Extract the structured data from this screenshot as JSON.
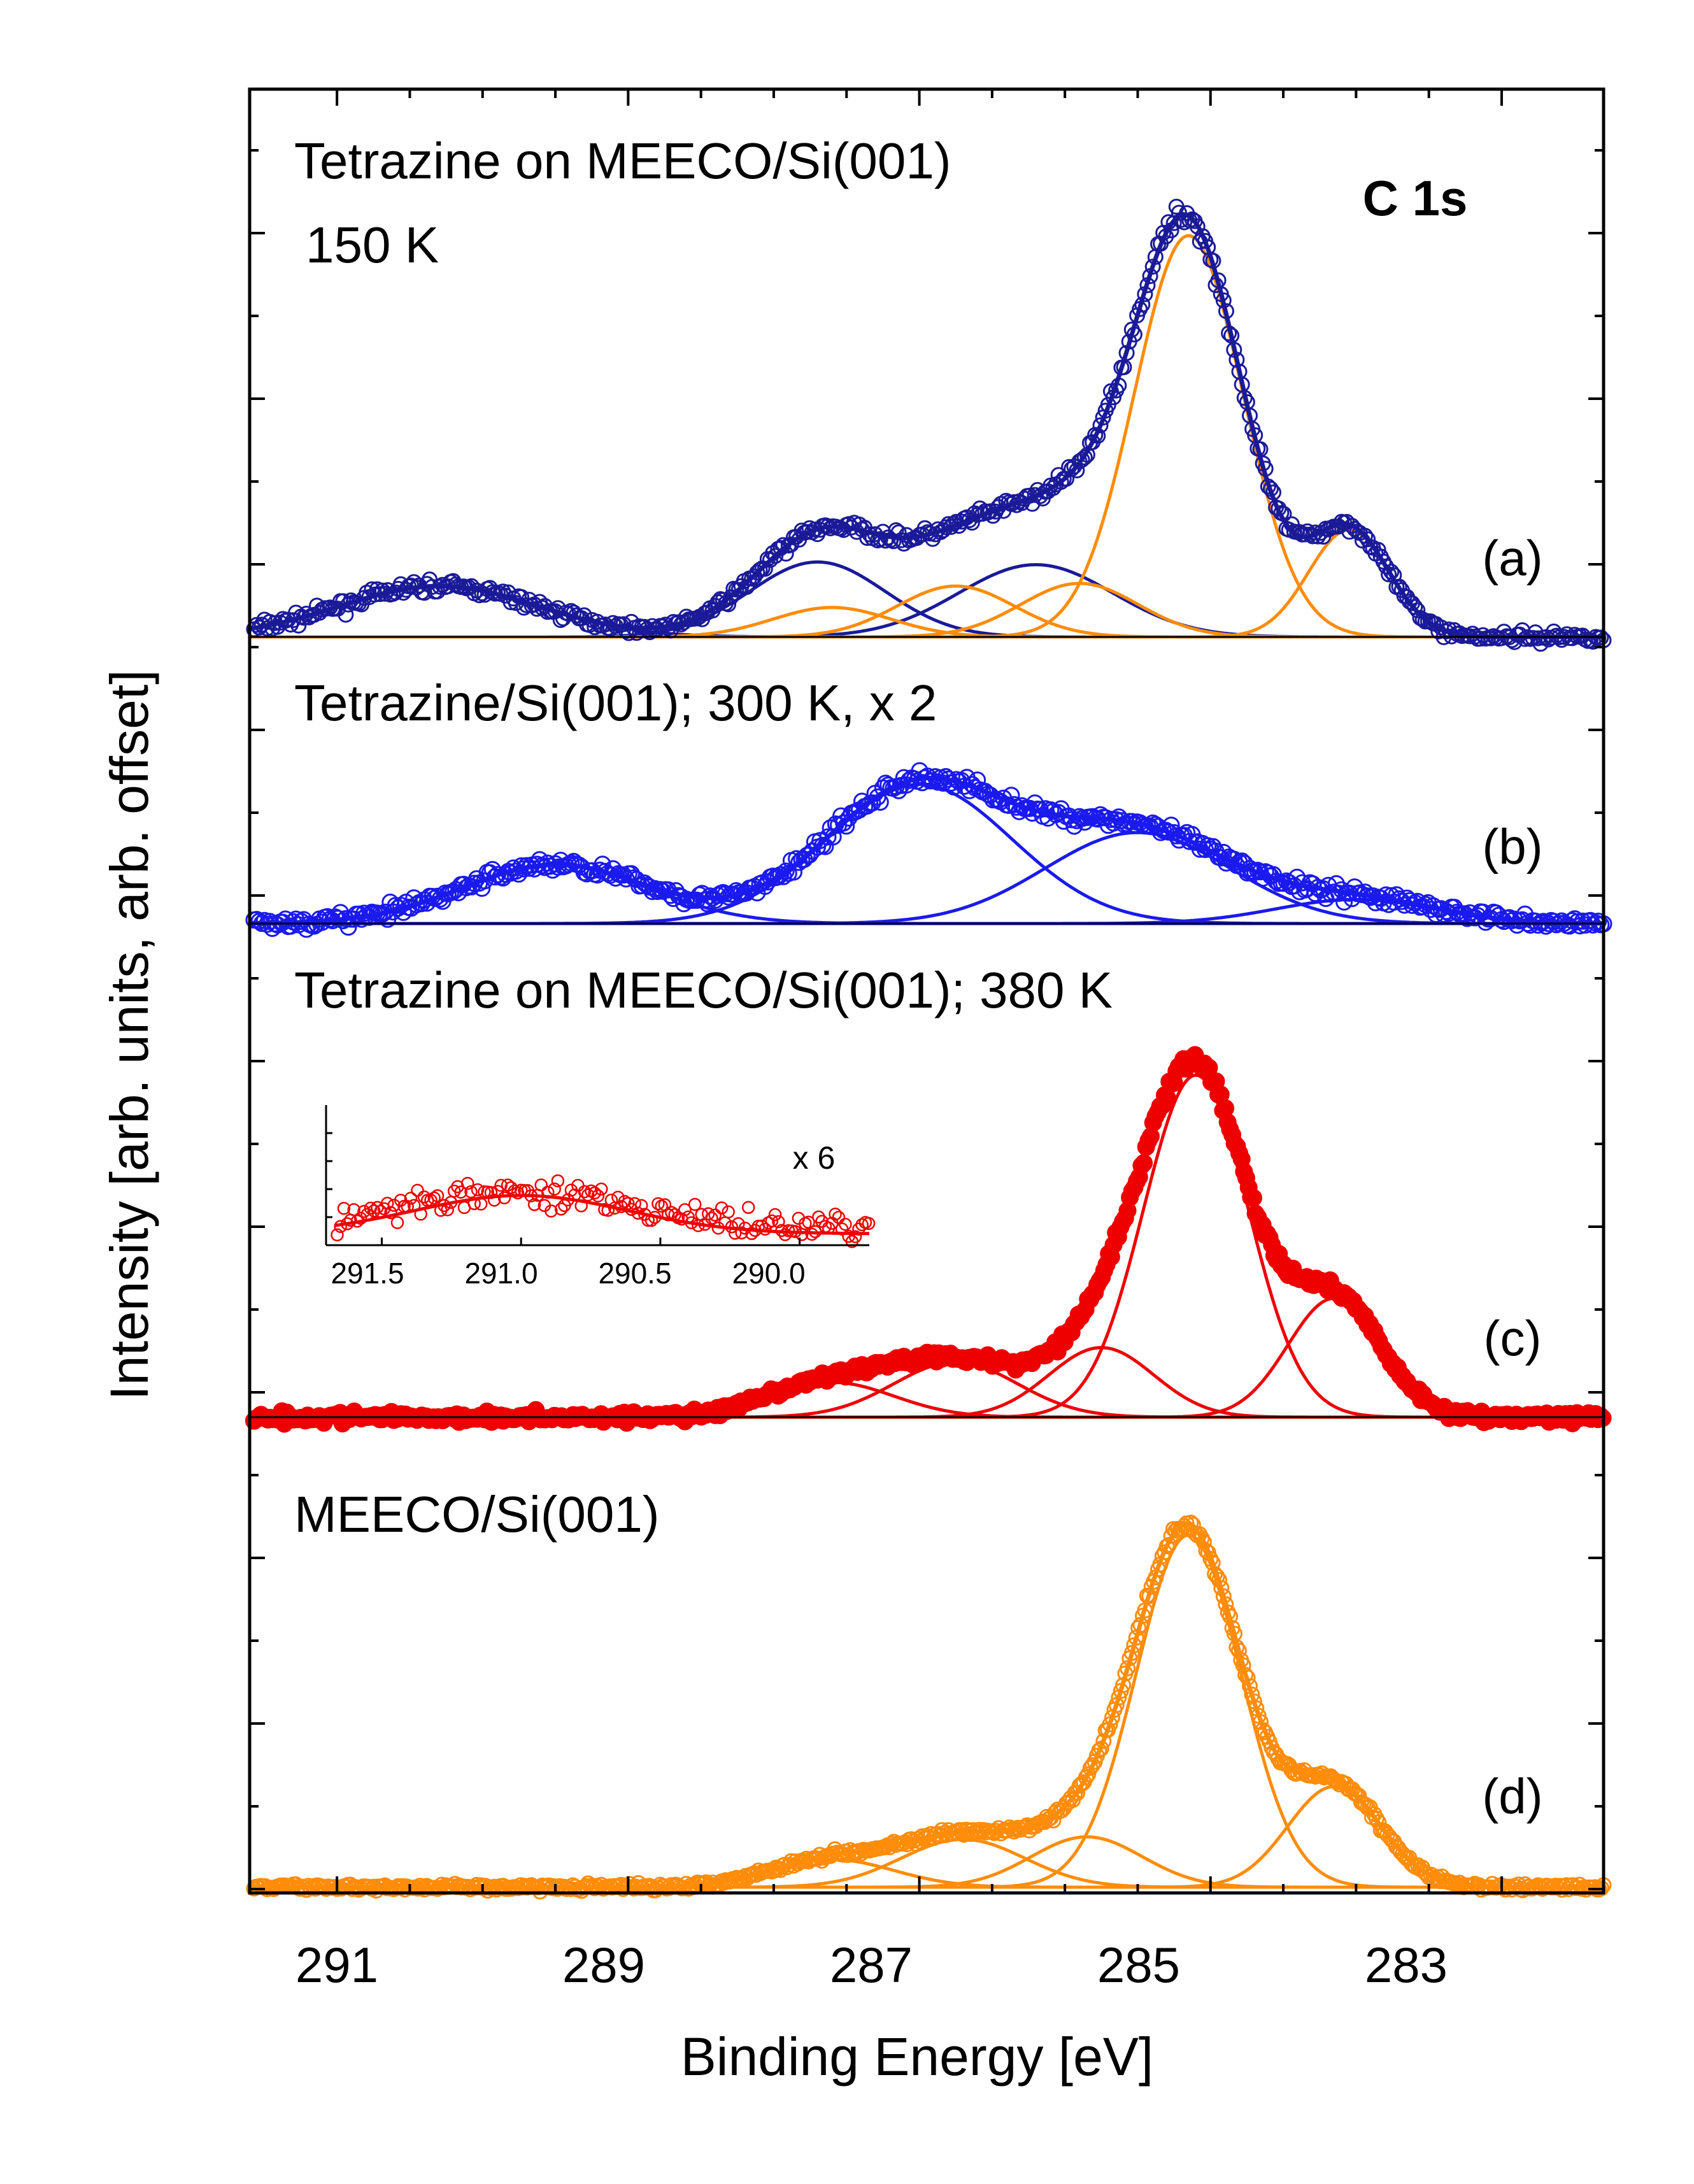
{
  "chart_data": {
    "type": "line",
    "title": "C 1s",
    "xlabel": "Binding Energy [eV]",
    "ylabel": "Intensity [arb. units, arb. offset]",
    "xlim": [
      291.6,
      282.3
    ],
    "x_reversed": true,
    "xticks": [
      "291",
      "289",
      "287",
      "285",
      "283"
    ],
    "colors": {
      "navy": "#1a1a99",
      "blue": "#1a1aee",
      "red": "#ee0000",
      "orange": "#ff8c0a",
      "black": "#000000"
    },
    "panels": [
      {
        "id": "a",
        "label": "(a)",
        "titles": [
          "Tetrazine on MEECO/Si(001)",
          "150 K"
        ],
        "marker_color": "#1a1a99",
        "marker": "open-circle",
        "envelope_color": "#1a1a99",
        "components": [
          {
            "center": 290.3,
            "fwhm": 1.6,
            "height": 0.095,
            "color": "#1a1a99"
          },
          {
            "center": 287.7,
            "fwhm": 1.1,
            "height": 0.14,
            "color": "#1a1a99"
          },
          {
            "center": 286.2,
            "fwhm": 1.25,
            "height": 0.135,
            "color": "#1a1a99"
          },
          {
            "center": 287.6,
            "fwhm": 0.95,
            "height": 0.055,
            "color": "#ff8c0a"
          },
          {
            "center": 286.75,
            "fwhm": 0.95,
            "height": 0.095,
            "color": "#ff8c0a"
          },
          {
            "center": 285.9,
            "fwhm": 0.95,
            "height": 0.1,
            "color": "#ff8c0a"
          },
          {
            "center": 285.15,
            "fwhm": 0.88,
            "height": 0.75,
            "color": "#ff8c0a"
          },
          {
            "center": 284.05,
            "fwhm": 0.65,
            "height": 0.2,
            "color": "#ff8c0a"
          }
        ]
      },
      {
        "id": "b",
        "label": "(b)",
        "titles": [
          "Tetrazine/Si(001); 300 K, x 2"
        ],
        "marker_color": "#1a1aee",
        "marker": "open-circle",
        "envelope_color": "#1a1aee",
        "components": [
          {
            "center": 289.5,
            "fwhm": 1.5,
            "height": 0.11,
            "color": "#1a1aee"
          },
          {
            "center": 287.0,
            "fwhm": 1.5,
            "height": 0.26,
            "color": "#1a1aee"
          },
          {
            "center": 285.5,
            "fwhm": 1.5,
            "height": 0.17,
            "color": "#1a1aee"
          },
          {
            "center": 284.0,
            "fwhm": 1.3,
            "height": 0.045,
            "color": "#1a1aee"
          }
        ]
      },
      {
        "id": "c",
        "label": "(c)",
        "titles": [
          "Tetrazine on MEECO/Si(001); 380 K"
        ],
        "marker_color": "#ee0000",
        "marker": "filled-circle",
        "envelope_color": "#ee0000",
        "components": [
          {
            "center": 287.6,
            "fwhm": 1.0,
            "height": 0.06,
            "color": "#ee0000"
          },
          {
            "center": 286.75,
            "fwhm": 1.0,
            "height": 0.095,
            "color": "#ee0000"
          },
          {
            "center": 285.75,
            "fwhm": 0.85,
            "height": 0.12,
            "color": "#ee0000"
          },
          {
            "center": 285.1,
            "fwhm": 0.85,
            "height": 0.59,
            "color": "#ee0000"
          },
          {
            "center": 284.15,
            "fwhm": 0.75,
            "height": 0.205,
            "color": "#ee0000"
          }
        ],
        "inset": {
          "annotation": "x 6",
          "xticks": [
            "291.5",
            "291.0",
            "290.5",
            "290.0"
          ],
          "xlim": [
            291.7,
            289.75
          ],
          "component": {
            "center": 291.0,
            "fwhm": 0.9,
            "height": 0.6
          }
        }
      },
      {
        "id": "d",
        "label": "(d)",
        "titles": [
          "MEECO/Si(001)"
        ],
        "marker_color": "#ff8c0a",
        "marker": "open-circle",
        "envelope_color": "#ff8c0a",
        "components": [
          {
            "center": 287.6,
            "fwhm": 1.0,
            "height": 0.055,
            "color": "#ff8c0a"
          },
          {
            "center": 286.7,
            "fwhm": 1.0,
            "height": 0.095,
            "color": "#ff8c0a"
          },
          {
            "center": 285.85,
            "fwhm": 0.9,
            "height": 0.1,
            "color": "#ff8c0a"
          },
          {
            "center": 285.15,
            "fwhm": 0.85,
            "height": 0.7,
            "color": "#ff8c0a"
          },
          {
            "center": 284.15,
            "fwhm": 0.75,
            "height": 0.2,
            "color": "#ff8c0a"
          }
        ]
      }
    ]
  }
}
